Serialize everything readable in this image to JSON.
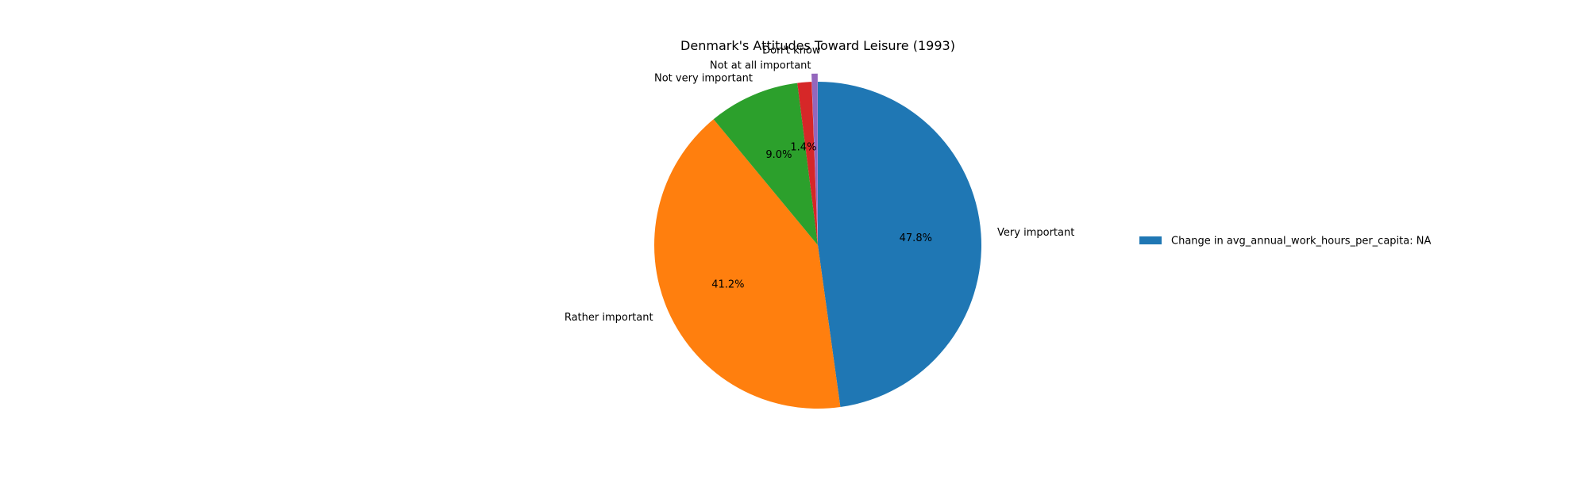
{
  "chart_data": {
    "type": "pie",
    "title": "Denmark's Attitudes Toward Leisure (1993)",
    "slices": [
      {
        "label": "Very important",
        "percent": 47.8,
        "pct_text": "47.8%",
        "color": "#1f77b4"
      },
      {
        "label": "Rather important",
        "percent": 41.2,
        "pct_text": "41.2%",
        "color": "#ff7f0e"
      },
      {
        "label": "Not very important",
        "percent": 9.0,
        "pct_text": "9.0%",
        "color": "#2ca02c"
      },
      {
        "label": "Not at all important",
        "percent": 1.4,
        "pct_text": "1.4%",
        "color": "#d62728"
      },
      {
        "label": "Don't know",
        "percent": 0.6,
        "pct_text": "",
        "color": "#9467bd"
      }
    ],
    "exploded": [
      "Don't know"
    ],
    "start_angle": "top",
    "direction": "clockwise",
    "legend": {
      "placement": "right",
      "entries": [
        {
          "label": "Change in avg_annual_work_hours_per_capita: NA",
          "color": "#1f77b4"
        }
      ]
    }
  }
}
